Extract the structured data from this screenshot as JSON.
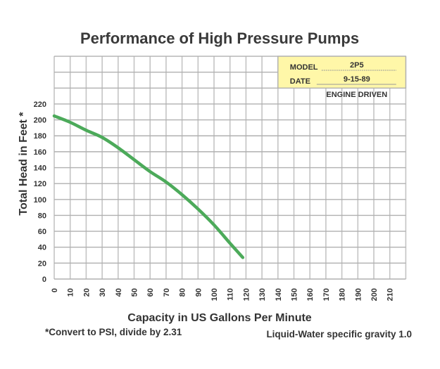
{
  "chart_data": {
    "type": "line",
    "title": "Performance of High Pressure Pumps",
    "xlabel": "Capacity in US Gallons Per Minute",
    "ylabel": "Total Head in Feet *",
    "xlim": [
      0,
      220
    ],
    "ylim": [
      0,
      220
    ],
    "grid": true,
    "x_ticks": [
      "0",
      "10",
      "20",
      "30",
      "40",
      "50",
      "60",
      "70",
      "80",
      "90",
      "100",
      "110",
      "120",
      "130",
      "140",
      "150",
      "160",
      "170",
      "180",
      "190",
      "200",
      "210"
    ],
    "y_ticks": [
      "0",
      "20",
      "40",
      "60",
      "80",
      "100",
      "120",
      "140",
      "160",
      "180",
      "200",
      "220"
    ],
    "series": [
      {
        "name": "2P5 Engine Driven",
        "color": "#4caa5a",
        "x": [
          0,
          10,
          20,
          30,
          40,
          50,
          60,
          70,
          80,
          90,
          100,
          110,
          118
        ],
        "y": [
          205,
          197,
          187,
          178,
          165,
          150,
          135,
          122,
          106,
          88,
          68,
          45,
          27
        ]
      }
    ],
    "info_box": {
      "model_label": "MODEL",
      "model_value": "2P5",
      "date_label": "DATE",
      "date_value": "9-15-89",
      "drive": "ENGINE DRIVEN",
      "background": "#fff7a8",
      "placement": "top-right"
    },
    "footnote_left": "*Convert to PSI, divide by 2.31",
    "footnote_right": "Liquid-Water specific gravity 1.0"
  }
}
